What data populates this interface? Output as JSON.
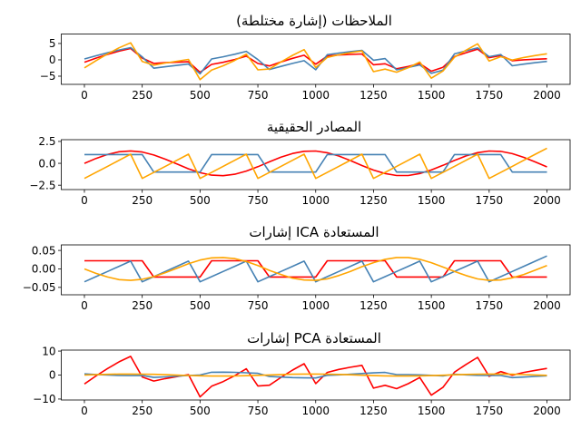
{
  "chart_data": [
    {
      "type": "line",
      "title": "الملاحظات (إشارة مختلطة)",
      "x": [
        0,
        50,
        100,
        150,
        200,
        250,
        300,
        350,
        400,
        450,
        500,
        550,
        600,
        650,
        700,
        750,
        800,
        850,
        900,
        950,
        1000,
        1050,
        1100,
        1150,
        1200,
        1250,
        1300,
        1350,
        1400,
        1450,
        1500,
        1550,
        1600,
        1650,
        1700,
        1750,
        1800,
        1850,
        1900,
        1950,
        2000
      ],
      "xlim": [
        -100,
        2100
      ],
      "xticks": [
        "0",
        "250",
        "500",
        "750",
        "1000",
        "1250",
        "1500",
        "1750",
        "2000"
      ],
      "ylim": [
        -7.5,
        7.9
      ],
      "yticks": [
        {
          "v": 5,
          "label": "5"
        },
        {
          "v": 0,
          "label": "0"
        },
        {
          "v": -5,
          "label": "−5"
        }
      ],
      "series": [
        {
          "color": "#ff0000",
          "values": [
            -0.73,
            0.51,
            1.66,
            2.67,
            3.45,
            0.56,
            -1.09,
            -0.88,
            -0.73,
            -0.59,
            -3.8,
            -1.39,
            -0.76,
            0.1,
            1.15,
            -1.12,
            -1.87,
            -0.65,
            0.47,
            1.41,
            -1.33,
            1.17,
            1.48,
            1.67,
            1.79,
            -1.5,
            -1.21,
            -2.74,
            -2.04,
            -1.13,
            -3.49,
            -2.27,
            0.98,
            2.19,
            3.26,
            0.67,
            1.32,
            -0.25,
            0.03,
            0.19,
            0.32
          ]
        },
        {
          "color": "#4682b4",
          "values": [
            0.27,
            1.24,
            2.16,
            3.01,
            3.75,
            0.92,
            -2.56,
            -2.11,
            -1.69,
            -1.28,
            -4.27,
            0.28,
            0.94,
            1.72,
            2.59,
            0.07,
            -2.95,
            -2.0,
            -1.09,
            -0.27,
            -3.03,
            1.57,
            2.07,
            2.51,
            2.91,
            -0.12,
            0.37,
            -3.05,
            -2.35,
            -1.55,
            -4.11,
            -3.16,
            1.82,
            2.77,
            3.65,
            0.97,
            1.64,
            -1.8,
            -1.31,
            -0.88,
            -0.48
          ]
        },
        {
          "color": "#ffa500",
          "values": [
            -2.46,
            -0.25,
            1.82,
            3.68,
            5.2,
            -0.52,
            -1.65,
            -0.99,
            -0.42,
            0.13,
            -6.07,
            -3.11,
            -1.82,
            -0.18,
            1.74,
            -3.05,
            -2.82,
            -0.65,
            1.38,
            3.14,
            -2.36,
            0.74,
            1.55,
            2.18,
            2.7,
            -3.62,
            -2.84,
            -3.79,
            -2.39,
            -0.68,
            -5.6,
            -3.43,
            0.8,
            2.96,
            4.91,
            -0.36,
            0.96,
            -0.05,
            0.72,
            1.31,
            1.84
          ]
        }
      ]
    },
    {
      "type": "line",
      "title": "المصادر الحقيقية",
      "x": [
        0,
        50,
        100,
        150,
        200,
        250,
        300,
        350,
        400,
        450,
        500,
        550,
        600,
        650,
        700,
        750,
        800,
        850,
        900,
        950,
        1000,
        1050,
        1100,
        1150,
        1200,
        1250,
        1300,
        1350,
        1400,
        1450,
        1500,
        1550,
        1600,
        1650,
        1700,
        1750,
        1800,
        1850,
        1900,
        1950,
        2000
      ],
      "xlim": [
        -100,
        2100
      ],
      "xticks": [
        "0",
        "250",
        "500",
        "750",
        "1000",
        "1250",
        "1500",
        "1750",
        "2000"
      ],
      "ylim": [
        -3.0,
        2.7
      ],
      "yticks": [
        {
          "v": 2.5,
          "label": "2.5"
        },
        {
          "v": 0,
          "label": "0.0"
        },
        {
          "v": -2.5,
          "label": "−2.5"
        }
      ],
      "series": [
        {
          "color": "#ff0000",
          "values": [
            0,
            0.55,
            1.01,
            1.32,
            1.41,
            1.29,
            0.95,
            0.47,
            -0.08,
            -0.63,
            -1.07,
            -1.35,
            -1.41,
            -1.25,
            -0.89,
            -0.39,
            0.17,
            0.7,
            1.12,
            1.37,
            1.4,
            1.21,
            0.83,
            0.32,
            -0.25,
            -0.77,
            -1.17,
            -1.39,
            -1.39,
            -1.17,
            -0.76,
            -0.23,
            0.33,
            0.84,
            1.22,
            1.4,
            1.36,
            1.1,
            0.68,
            0.15,
            -0.41
          ]
        },
        {
          "color": "#4682b4",
          "values": [
            1,
            1,
            1,
            1,
            1,
            1,
            -1,
            -1,
            -1,
            -1,
            -1,
            1,
            1,
            1,
            1,
            1,
            -1,
            -1,
            -1,
            -1,
            -1,
            1,
            1,
            1,
            1,
            1,
            1,
            -1,
            -1,
            -1,
            -1,
            -1,
            1,
            1,
            1,
            1,
            1,
            -1,
            -1,
            -1,
            -1
          ]
        },
        {
          "color": "#ffa500",
          "values": [
            -1.73,
            -1.04,
            -0.35,
            0.35,
            1.04,
            -1.73,
            -1.04,
            -0.35,
            0.35,
            1.04,
            -1.73,
            -1.04,
            -0.35,
            0.35,
            1.04,
            -1.73,
            -1.04,
            -0.35,
            0.35,
            1.04,
            -1.73,
            -1.04,
            -0.35,
            0.35,
            1.04,
            -1.73,
            -1.04,
            -0.35,
            0.35,
            1.04,
            -1.73,
            -1.04,
            -0.35,
            0.35,
            1.04,
            -1.73,
            -1.04,
            -0.35,
            0.35,
            1.04,
            1.73
          ]
        }
      ]
    },
    {
      "type": "line",
      "title": "إشارات ICA المستعادة",
      "x": [
        0,
        50,
        100,
        150,
        200,
        250,
        300,
        350,
        400,
        450,
        500,
        550,
        600,
        650,
        700,
        750,
        800,
        850,
        900,
        950,
        1000,
        1050,
        1100,
        1150,
        1200,
        1250,
        1300,
        1350,
        1400,
        1450,
        1500,
        1550,
        1600,
        1650,
        1700,
        1750,
        1800,
        1850,
        1900,
        1950,
        2000
      ],
      "xlim": [
        -100,
        2100
      ],
      "xticks": [
        "0",
        "250",
        "500",
        "750",
        "1000",
        "1250",
        "1500",
        "1750",
        "2000"
      ],
      "ylim": [
        -0.07,
        0.065
      ],
      "yticks": [
        {
          "v": 0.05,
          "label": "0.05"
        },
        {
          "v": 0,
          "label": "0.00"
        },
        {
          "v": -0.05,
          "label": "−0.05"
        }
      ],
      "series": [
        {
          "color": "#ff0000",
          "values": [
            0.022,
            0.022,
            0.022,
            0.022,
            0.022,
            0.022,
            -0.022,
            -0.022,
            -0.022,
            -0.022,
            -0.022,
            0.022,
            0.022,
            0.022,
            0.022,
            0.022,
            -0.022,
            -0.022,
            -0.022,
            -0.022,
            -0.022,
            0.022,
            0.022,
            0.022,
            0.022,
            0.022,
            0.022,
            -0.022,
            -0.022,
            -0.022,
            -0.022,
            -0.022,
            0.022,
            0.022,
            0.022,
            0.022,
            0.022,
            -0.022,
            -0.022,
            -0.022,
            -0.022
          ]
        },
        {
          "color": "#4682b4",
          "values": [
            -0.035,
            -0.021,
            -0.007,
            0.007,
            0.021,
            -0.035,
            -0.021,
            -0.007,
            0.007,
            0.021,
            -0.035,
            -0.021,
            -0.007,
            0.007,
            0.021,
            -0.035,
            -0.021,
            -0.007,
            0.007,
            0.021,
            -0.035,
            -0.021,
            -0.007,
            0.007,
            0.021,
            -0.035,
            -0.021,
            -0.007,
            0.007,
            0.021,
            -0.035,
            -0.021,
            -0.007,
            0.007,
            0.021,
            -0.035,
            -0.021,
            -0.007,
            0.007,
            0.021,
            0.035
          ]
        },
        {
          "color": "#ffa500",
          "values": [
            0,
            -0.012,
            -0.022,
            -0.029,
            -0.031,
            -0.028,
            -0.021,
            -0.01,
            0.002,
            0.014,
            0.024,
            0.03,
            0.031,
            0.028,
            0.02,
            0.009,
            -0.004,
            -0.015,
            -0.025,
            -0.03,
            -0.031,
            -0.027,
            -0.018,
            -0.007,
            0.006,
            0.017,
            0.026,
            0.031,
            0.031,
            0.026,
            0.017,
            0.005,
            -0.007,
            -0.018,
            -0.027,
            -0.031,
            -0.03,
            -0.024,
            -0.015,
            -0.003,
            0.009
          ]
        }
      ]
    },
    {
      "type": "line",
      "title": "إشارات PCA المستعادة",
      "x": [
        0,
        50,
        100,
        150,
        200,
        250,
        300,
        350,
        400,
        450,
        500,
        550,
        600,
        650,
        700,
        750,
        800,
        850,
        900,
        950,
        1000,
        1050,
        1100,
        1150,
        1200,
        1250,
        1300,
        1350,
        1400,
        1450,
        1500,
        1550,
        1600,
        1650,
        1700,
        1750,
        1800,
        1850,
        1900,
        1950,
        2000
      ],
      "xlim": [
        -100,
        2100
      ],
      "xticks": [
        "0",
        "250",
        "500",
        "750",
        "1000",
        "1250",
        "1500",
        "1750",
        "2000"
      ],
      "ylim": [
        -10.4,
        10.4
      ],
      "yticks": [
        {
          "v": 10,
          "label": "10"
        },
        {
          "v": 0,
          "label": "0"
        },
        {
          "v": -10,
          "label": "−10"
        }
      ],
      "series": [
        {
          "color": "#ff0000",
          "values": [
            -3.69,
            -0.38,
            2.73,
            5.52,
            7.8,
            -0.78,
            -2.48,
            -1.49,
            -0.63,
            0.2,
            -9.11,
            -4.67,
            -2.73,
            -0.27,
            2.61,
            -4.58,
            -4.23,
            -0.98,
            2.07,
            4.71,
            -3.54,
            1.11,
            2.33,
            3.27,
            4.05,
            -5.43,
            -4.26,
            -5.69,
            -3.59,
            -1.02,
            -8.4,
            -5.15,
            1.2,
            4.44,
            7.37,
            -0.54,
            1.44,
            -0.08,
            1.08,
            1.97,
            2.76
          ]
        },
        {
          "color": "#4682b4",
          "values": [
            0.5,
            0.22,
            -0.01,
            -0.16,
            -0.21,
            -0.15,
            -0.98,
            -0.74,
            -0.46,
            -0.19,
            0.04,
            1.18,
            1.21,
            1.13,
            0.95,
            0.7,
            -0.59,
            -0.85,
            -1.06,
            -1.19,
            -1.2,
            -0.11,
            0.09,
            0.34,
            0.63,
            0.89,
            1.09,
            0.2,
            0.2,
            0.09,
            -0.12,
            -0.39,
            0.34,
            0.08,
            -0.11,
            -0.2,
            -0.18,
            -1.05,
            -0.84,
            -0.58,
            -0.3
          ]
        },
        {
          "color": "#ffa500",
          "values": [
            0,
            0.17,
            0.3,
            0.4,
            0.42,
            0.39,
            0.29,
            0.14,
            -0.02,
            -0.19,
            -0.32,
            -0.41,
            -0.42,
            -0.38,
            -0.27,
            -0.12,
            0.05,
            0.21,
            0.34,
            0.41,
            0.42,
            0.36,
            0.25,
            0.1,
            -0.08,
            -0.23,
            -0.35,
            -0.42,
            -0.42,
            -0.35,
            -0.23,
            -0.07,
            0.1,
            0.25,
            0.37,
            0.42,
            0.41,
            0.33,
            0.2,
            0.05,
            -0.12
          ]
        }
      ]
    }
  ]
}
